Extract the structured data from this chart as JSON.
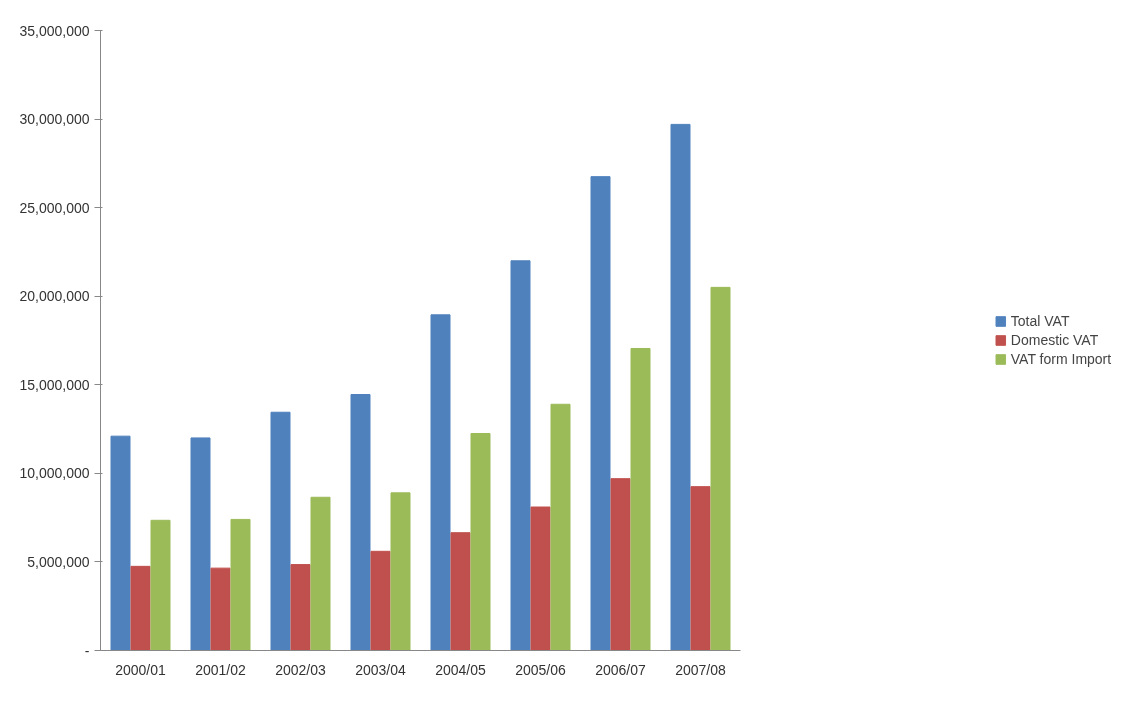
{
  "chart_data": {
    "type": "bar",
    "categories": [
      "2000/01",
      "2001/02",
      "2002/03",
      "2003/04",
      "2004/05",
      "2005/06",
      "2006/07",
      "2007/08"
    ],
    "series": [
      {
        "name": "Total VAT",
        "color": "#4f81bd",
        "values": [
          12100000,
          12000000,
          13450000,
          14450000,
          18950000,
          22000000,
          26750000,
          29700000
        ]
      },
      {
        "name": "Domestic VAT",
        "color": "#c0504d",
        "values": [
          4750000,
          4650000,
          4850000,
          5600000,
          6650000,
          8100000,
          9700000,
          9250000
        ]
      },
      {
        "name": "VAT form Import",
        "color": "#9bbb59",
        "values": [
          7350000,
          7400000,
          8650000,
          8900000,
          12250000,
          13900000,
          17050000,
          20500000
        ]
      }
    ],
    "ylim": [
      0,
      35000000
    ],
    "yticks": [
      {
        "value": 0,
        "label": "-"
      },
      {
        "value": 5000000,
        "label": "5,000,000"
      },
      {
        "value": 10000000,
        "label": "10,000,000"
      },
      {
        "value": 15000000,
        "label": "15,000,000"
      },
      {
        "value": 20000000,
        "label": "20,000,000"
      },
      {
        "value": 25000000,
        "label": "25,000,000"
      },
      {
        "value": 30000000,
        "label": "30,000,000"
      },
      {
        "value": 35000000,
        "label": "35,000,000"
      }
    ],
    "grid": false,
    "legend": "right"
  }
}
